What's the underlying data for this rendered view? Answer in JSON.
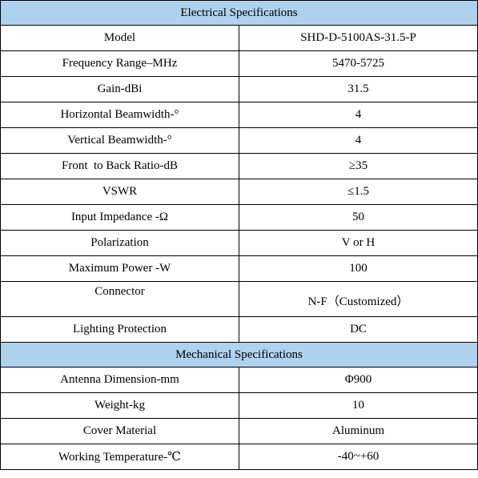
{
  "electrical": {
    "heading": "Electrical Specifications",
    "rows": [
      {
        "label": "Model",
        "value": "SHD-D-5100AS-31.5-P"
      },
      {
        "label": "Frequency Range–MHz",
        "value": "5470-5725"
      },
      {
        "label": "Gain-dBi",
        "value": "31.5"
      },
      {
        "label": "Horizontal Beamwidth-°",
        "value": "4"
      },
      {
        "label": "Vertical Beamwidth-°",
        "value": "4"
      },
      {
        "label": "Front  to Back Ratio-dB",
        "value": "≥35"
      },
      {
        "label": "VSWR",
        "value": "≤1.5"
      },
      {
        "label": "Input Impedance -Ω",
        "value": "50"
      },
      {
        "label": "Polarization",
        "value": "V or H"
      },
      {
        "label": "Maximum Power -W",
        "value": "100"
      },
      {
        "label": "Connector",
        "value": "N-F（Customized）"
      },
      {
        "label": "Lighting Protection",
        "value": "DC"
      }
    ]
  },
  "mechanical": {
    "heading": "Mechanical Specifications",
    "rows": [
      {
        "label": "Antenna Dimension-mm",
        "value": "Φ900"
      },
      {
        "label": "Weight-kg",
        "value": "10"
      },
      {
        "label": "Cover Material",
        "value": "Aluminum"
      },
      {
        "label": "Working Temperature-℃",
        "value": "-40~+60"
      }
    ]
  }
}
